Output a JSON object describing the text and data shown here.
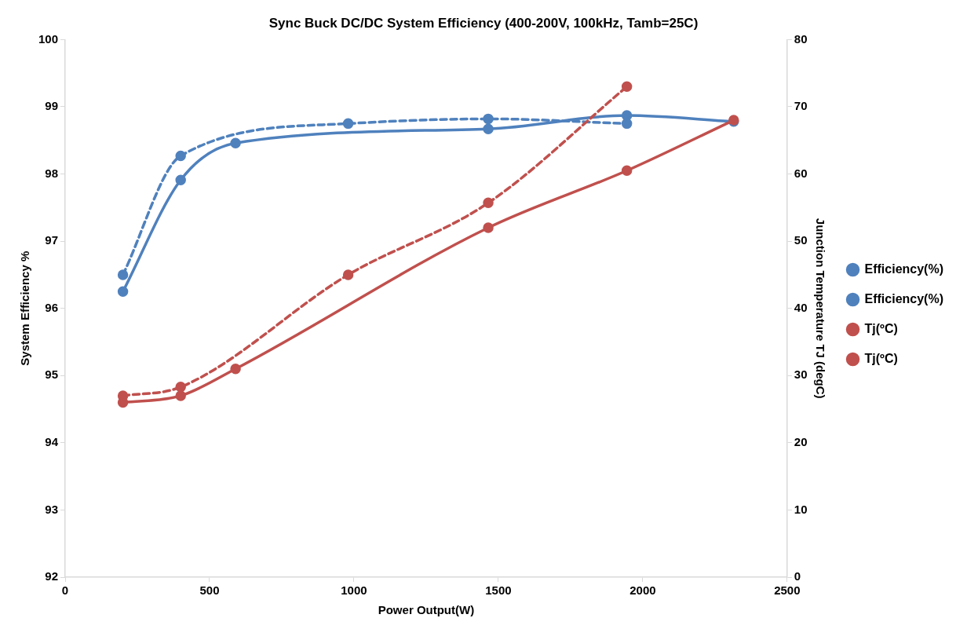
{
  "chart_data": {
    "type": "line",
    "title": "Sync Buck DC/DC System Efficiency (400-200V, 100kHz, Tamb=25C)",
    "xlabel": "Power Output(W)",
    "ylabel": "System Efficiency %",
    "y2label": "Junction Temperature TJ (degC)",
    "xlim": [
      0,
      2500
    ],
    "xticks": [
      0,
      500,
      1000,
      1500,
      2000,
      2500
    ],
    "ylim": [
      92,
      100
    ],
    "yticks": [
      92,
      93,
      94,
      95,
      96,
      97,
      98,
      99,
      100
    ],
    "y2lim": [
      0,
      80
    ],
    "y2ticks": [
      0,
      10,
      20,
      30,
      40,
      50,
      60,
      70,
      80
    ],
    "grid": false,
    "legend": "right",
    "marker": "circle",
    "series": [
      {
        "name": "Efficiency(%)",
        "color": "#4f81bd",
        "line_style": "solid",
        "x": [
          200,
          400,
          590,
          1465,
          1945,
          2315
        ],
        "values": [
          96.25,
          97.91,
          98.46,
          98.67,
          98.87,
          98.78
        ]
      },
      {
        "name": "Efficiency(%)",
        "color": "#4f81bd",
        "line_style": "dashed",
        "x": [
          200,
          400,
          980,
          1465,
          1945
        ],
        "values": [
          96.5,
          98.27,
          98.75,
          98.82,
          98.75
        ]
      },
      {
        "name": "Tj(ºC)",
        "color": "#c0504d",
        "line_style": "solid",
        "axis": "y2",
        "x": [
          200,
          400,
          590,
          1465,
          1945,
          2315
        ],
        "values": [
          26,
          27,
          31,
          52,
          60.5,
          68
        ]
      },
      {
        "name": "Tj(ºC)",
        "color": "#c0504d",
        "line_style": "dashed",
        "axis": "y2",
        "x": [
          200,
          400,
          980,
          1465,
          1945
        ],
        "values": [
          27,
          28.3,
          45,
          55.7,
          73
        ]
      }
    ]
  }
}
